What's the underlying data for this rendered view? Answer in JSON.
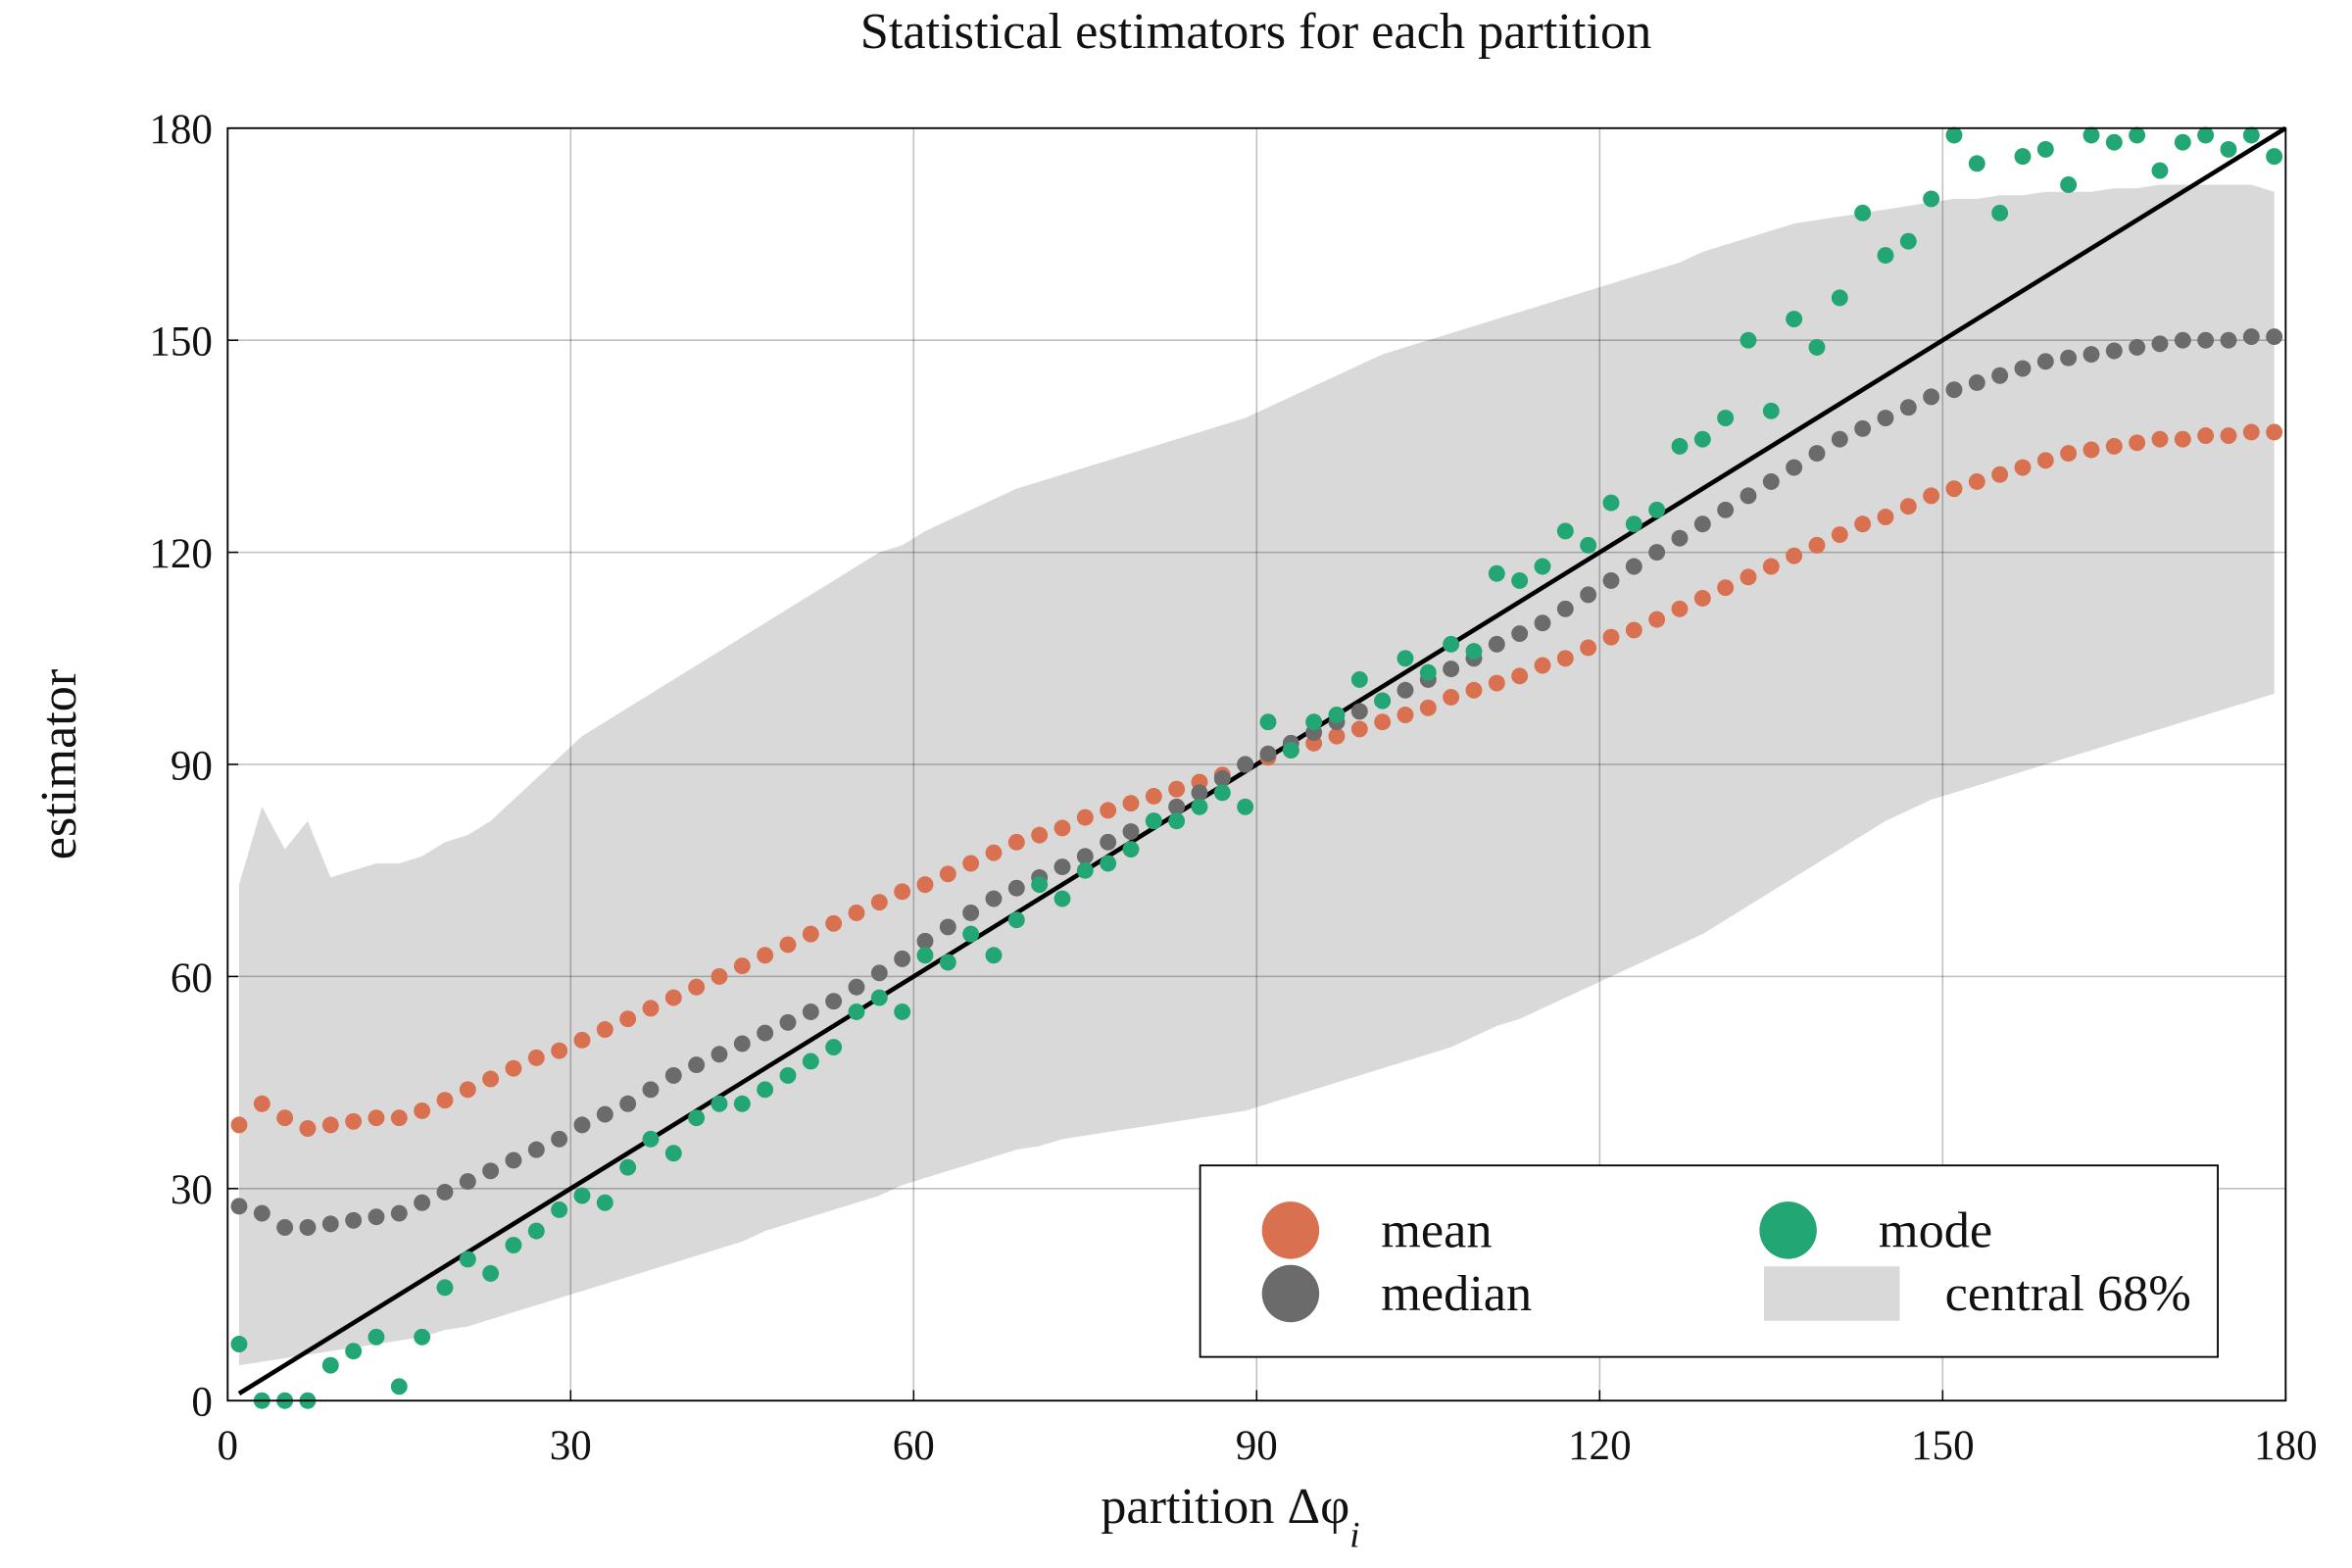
{
  "chart_data": {
    "type": "scatter",
    "title": "Statistical estimators for each partition",
    "x_label": "partition Δφ",
    "x_label_sub": "i",
    "y_label": "estimator",
    "xlim": [
      0,
      180
    ],
    "ylim": [
      0,
      180
    ],
    "xticks": [
      0,
      30,
      60,
      90,
      120,
      150,
      180
    ],
    "yticks": [
      0,
      30,
      60,
      90,
      120,
      150,
      180
    ],
    "grid": true,
    "legend": "lower right",
    "x": [
      1,
      3,
      5,
      7,
      9,
      11,
      13,
      15,
      17,
      19,
      21,
      23,
      25,
      27,
      29,
      31,
      33,
      35,
      37,
      39,
      41,
      43,
      45,
      47,
      49,
      51,
      53,
      55,
      57,
      59,
      61,
      63,
      65,
      67,
      69,
      71,
      73,
      75,
      77,
      79,
      81,
      83,
      85,
      87,
      89,
      91,
      93,
      95,
      97,
      99,
      101,
      103,
      105,
      107,
      109,
      111,
      113,
      115,
      117,
      119,
      121,
      123,
      125,
      127,
      129,
      131,
      133,
      135,
      137,
      139,
      141,
      143,
      145,
      147,
      149,
      151,
      153,
      155,
      157,
      159,
      161,
      163,
      165,
      167,
      169,
      171,
      173,
      175,
      177,
      179
    ],
    "band": {
      "name": "central 68%",
      "color": "#d9d9d9",
      "lower": [
        5,
        5.5,
        6,
        6.5,
        7,
        7.5,
        8,
        8.5,
        9,
        10,
        10.5,
        11.5,
        12.5,
        13.5,
        14.5,
        15.5,
        16.5,
        17.5,
        18.5,
        19.5,
        20.5,
        21.5,
        22.5,
        24,
        25,
        26,
        27,
        28,
        29,
        30.5,
        31.5,
        32.5,
        33.5,
        34.5,
        35.5,
        36,
        37,
        37.5,
        38,
        38.5,
        39,
        39.5,
        40,
        40.5,
        41,
        42,
        43,
        44,
        45,
        46,
        47,
        48,
        49,
        50,
        51.5,
        53,
        54,
        55.5,
        57,
        58.5,
        60,
        61.5,
        63,
        64.5,
        66,
        68,
        70,
        72,
        74,
        76,
        78,
        80,
        82,
        83.5,
        85,
        86,
        87,
        88,
        89,
        90,
        91,
        92,
        93,
        94,
        95,
        96,
        97,
        98,
        99,
        100
      ],
      "upper": [
        73,
        84,
        78,
        82,
        74,
        75,
        76,
        76,
        77,
        79,
        80,
        82,
        85,
        88,
        91,
        94,
        96,
        98,
        100,
        102,
        104,
        106,
        108,
        110,
        112,
        114,
        116,
        118,
        120,
        121,
        123,
        124.5,
        126,
        127.5,
        129,
        130,
        131,
        132,
        133,
        134,
        135,
        136,
        137,
        138,
        139,
        140.5,
        142,
        143.5,
        145,
        146.5,
        148,
        149,
        150,
        151,
        152,
        153,
        154,
        155,
        156,
        157,
        158,
        159,
        160,
        161,
        162.5,
        163.5,
        164.5,
        165.5,
        166.5,
        167,
        167.5,
        168,
        168.5,
        169,
        169.5,
        170,
        170,
        170.5,
        170.5,
        171,
        171,
        171,
        171.5,
        171.5,
        172,
        172,
        172,
        172,
        172,
        171
      ]
    },
    "line": {
      "color": "#000000",
      "x": [
        1,
        180
      ],
      "values": [
        1,
        180
      ]
    },
    "series": [
      {
        "name": "mean",
        "color": "#d9704f",
        "values": [
          39,
          42,
          40,
          38.5,
          39,
          39.5,
          40,
          40,
          41,
          42.5,
          44,
          45.5,
          47,
          48.5,
          49.5,
          51,
          52.5,
          54,
          55.5,
          57,
          58.5,
          60,
          61.5,
          63,
          64.5,
          66,
          67.5,
          69,
          70.5,
          72,
          73,
          74.5,
          76,
          77.5,
          79,
          80,
          81,
          82.5,
          83.5,
          84.5,
          85.5,
          86.5,
          87.5,
          88.5,
          90,
          91,
          92,
          93,
          94,
          95,
          96,
          97,
          98,
          99.5,
          100.5,
          101.5,
          102.5,
          104,
          105,
          106.5,
          108,
          109,
          110.5,
          112,
          113.5,
          115,
          116.5,
          118,
          119.5,
          121,
          122.5,
          124,
          125,
          126.5,
          128,
          129,
          130,
          131,
          132,
          133,
          134,
          134.5,
          135,
          135.5,
          136,
          136,
          136.5,
          136.5,
          137,
          137
        ]
      },
      {
        "name": "median",
        "color": "#6b6b6b",
        "values": [
          27.5,
          26.5,
          24.5,
          24.5,
          25,
          25.5,
          26,
          26.5,
          28,
          29.5,
          31,
          32.5,
          34,
          35.5,
          37,
          39,
          40.5,
          42,
          44,
          46,
          47.5,
          49,
          50.5,
          52,
          53.5,
          55,
          56.5,
          58.5,
          60.5,
          62.5,
          65,
          67,
          69,
          71,
          72.5,
          74,
          75.5,
          77,
          79,
          80.5,
          82,
          84,
          86,
          88,
          90,
          91.5,
          93,
          94.5,
          96,
          97.5,
          99,
          100.5,
          102,
          103.5,
          105,
          107,
          108.5,
          110,
          112,
          114,
          116,
          118,
          120,
          122,
          124,
          126,
          128,
          130,
          132,
          134,
          136,
          137.5,
          139,
          140.5,
          142,
          143,
          144,
          145,
          146,
          147,
          147.5,
          148,
          148.5,
          149,
          149.5,
          150,
          150,
          150,
          150.5,
          150.5
        ]
      },
      {
        "name": "mode",
        "color": "#22a673",
        "values": [
          8,
          0,
          0,
          0,
          5,
          7,
          9,
          2,
          9,
          16,
          20,
          18,
          22,
          24,
          27,
          29,
          28,
          33,
          37,
          35,
          40,
          42,
          42,
          44,
          46,
          48,
          50,
          55,
          57,
          55,
          63,
          62,
          66,
          63,
          68,
          73,
          71,
          75,
          76,
          78,
          82,
          82,
          84,
          86,
          84,
          96,
          92,
          96,
          97,
          102,
          99,
          105,
          103,
          107,
          106,
          117,
          116,
          118,
          123,
          121,
          127,
          124,
          126,
          135,
          136,
          139,
          150,
          140,
          153,
          149,
          156,
          168,
          162,
          164,
          170,
          179,
          175,
          168,
          176,
          177,
          172,
          179,
          178,
          179,
          174,
          178,
          179,
          177,
          179,
          176
        ]
      }
    ]
  }
}
